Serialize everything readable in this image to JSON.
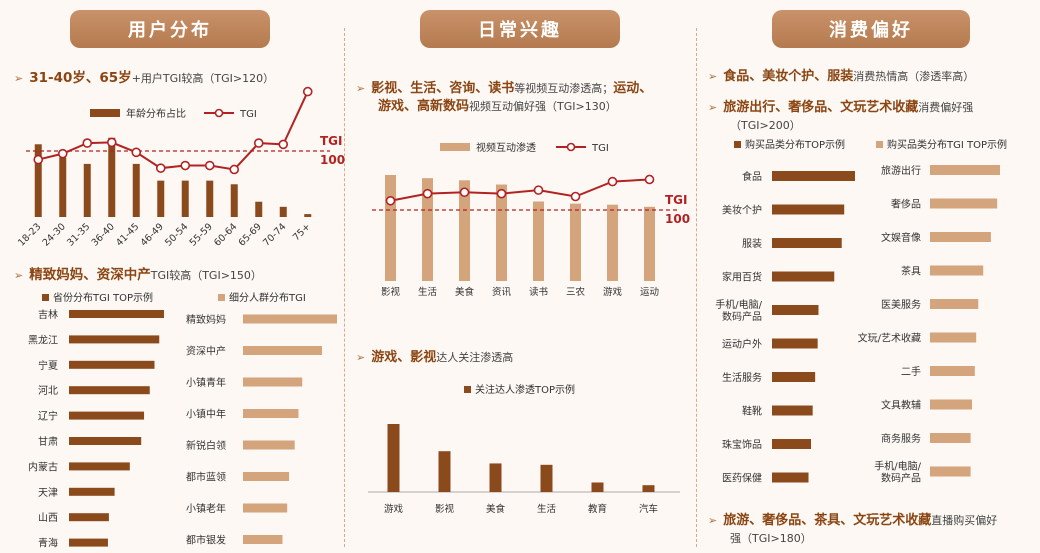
{
  "colors": {
    "dark": "#8b4a1c",
    "light": "#d4a47c",
    "tgi": "#b22222",
    "title_bg": "#bf8558"
  },
  "header": {
    "col1_title": "用户分布",
    "col2_title": "日常兴趣",
    "col3_title": "消费偏好"
  },
  "col1": {
    "h1_highlight": "31-40岁、65岁",
    "h1_rest": "+用户TGI较高（TGI>120）",
    "h2_highlight": "精致妈妈、资深中产",
    "h2_rest": "TGI较高（TGI>150）"
  },
  "col2": {
    "h1_highlight_a": "影视、生活、咨询、读书",
    "h1_rest_a": "等视频互动渗透高；",
    "h1_highlight_b": "运动、",
    "h1_highlight_c": "游戏、高新数码",
    "h1_rest_c": "视频互动偏好强（TGI>130）",
    "h2_highlight": "游戏、影视",
    "h2_rest": "达人关注渗透高"
  },
  "col3": {
    "h1_highlight": "食品、美妆个护、服装",
    "h1_rest": "消费热情高（渗透率高）",
    "h2_highlight": "旅游出行、奢侈品、文玩艺术收藏",
    "h2_rest_a": "消费偏好强",
    "h2_rest_b": "（TGI>200）",
    "h3_highlight": "旅游、奢侈品、茶具、文玩艺术收藏",
    "h3_rest_a": "直播购买偏好",
    "h3_rest_b": "强（TGI>180）"
  },
  "chart_data": [
    {
      "id": "age",
      "type": "bar",
      "legend": [
        "年龄分布占比",
        "TGI"
      ],
      "categories": [
        "18-23",
        "24-30",
        "31-35",
        "36-40",
        "41-45",
        "46-49",
        "50-54",
        "55-59",
        "60-64",
        "65-69",
        "70-74",
        "75+"
      ],
      "series": [
        {
          "name": "年龄分布占比",
          "values": [
            100,
            82,
            73,
            109,
            73,
            50,
            50,
            50,
            45,
            21,
            14,
            4
          ]
        },
        {
          "name": "TGI",
          "values": [
            87,
            96,
            112,
            113,
            98,
            74,
            78,
            78,
            72,
            112,
            110,
            190
          ]
        }
      ],
      "reference_line": 100,
      "ref_label_a": "TGI",
      "ref_label_b": "100"
    },
    {
      "id": "hobby",
      "type": "bar",
      "legend": [
        "视频互动渗透",
        "TGI"
      ],
      "categories": [
        "影视",
        "生活",
        "美食",
        "资讯",
        "读书",
        "三农",
        "游戏",
        "运动"
      ],
      "series": [
        {
          "name": "视频互动渗透",
          "values": [
            100,
            97,
            95,
            91,
            75,
            73,
            72,
            70
          ]
        },
        {
          "name": "TGI",
          "values": [
            113,
            123,
            125,
            123,
            128,
            119,
            140,
            143
          ]
        }
      ],
      "reference_line": 100,
      "ref_label_a": "TGI",
      "ref_label_b": "100"
    },
    {
      "id": "kol",
      "type": "bar",
      "legend": [
        "关注达人渗透TOP示例"
      ],
      "categories": [
        "游戏",
        "影视",
        "美食",
        "生活",
        "教育",
        "汽车"
      ],
      "values": [
        100,
        60,
        42,
        40,
        14,
        10
      ]
    },
    {
      "id": "province",
      "type": "bar",
      "legend": [
        "省份分布TGI TOP示例"
      ],
      "categories": [
        "吉林",
        "黑龙江",
        "宁夏",
        "河北",
        "辽宁",
        "甘肃",
        "内蒙古",
        "天津",
        "山西",
        "青海"
      ],
      "values": [
        100,
        95,
        90,
        85,
        79,
        76,
        64,
        48,
        42,
        41
      ]
    },
    {
      "id": "crowd",
      "type": "bar",
      "legend": [
        "细分人群分布TGI"
      ],
      "categories": [
        "精致妈妈",
        "资深中产",
        "小镇青年",
        "小镇中年",
        "新锐白领",
        "都市蓝领",
        "小镇老年",
        "都市银发"
      ],
      "values": [
        100,
        84,
        63,
        59,
        55,
        49,
        47,
        42
      ]
    },
    {
      "id": "buy",
      "type": "bar",
      "legend": [
        "购买品类分布TOP示例"
      ],
      "categories": [
        "食品",
        "美妆个护",
        "服装",
        "家用百货",
        "手机/电脑/数码产品",
        "运动户外",
        "生活服务",
        "鞋靴",
        "珠宝饰品",
        "医药保健"
      ],
      "values": [
        100,
        87,
        84,
        75,
        56,
        55,
        52,
        49,
        47,
        44
      ]
    },
    {
      "id": "buytgi",
      "type": "bar",
      "legend": [
        "购买品类分布TGI TOP示例"
      ],
      "categories": [
        "旅游出行",
        "奢侈品",
        "文娱音像",
        "茶具",
        "医美服务",
        "文玩/艺术收藏",
        "二手",
        "文具教辅",
        "商务服务",
        "手机/电脑/数码产品"
      ],
      "values": [
        100,
        96,
        87,
        76,
        69,
        66,
        64,
        60,
        58,
        58
      ]
    }
  ]
}
